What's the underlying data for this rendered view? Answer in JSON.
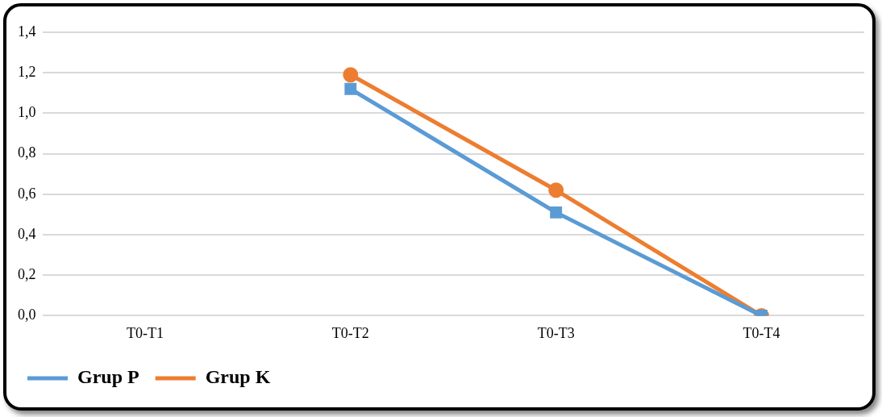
{
  "chart_data": {
    "type": "line",
    "categories": [
      "T0-T1",
      "T0-T2",
      "T0-T3",
      "T0-T4"
    ],
    "series": [
      {
        "name": "Grup P",
        "color": "#5b9bd5",
        "marker": "square",
        "values": [
          null,
          1.12,
          0.51,
          0
        ]
      },
      {
        "name": "Grup K",
        "color": "#ed7d31",
        "marker": "circle",
        "values": [
          null,
          1.19,
          0.62,
          0
        ]
      }
    ],
    "ylim": [
      0,
      1.4
    ],
    "yticks": [
      {
        "value": 0,
        "label": "0,0"
      },
      {
        "value": 0.2,
        "label": "0,2"
      },
      {
        "value": 0.4,
        "label": "0,4"
      },
      {
        "value": 0.6,
        "label": "0,6"
      },
      {
        "value": 0.8,
        "label": "0,8"
      },
      {
        "value": 1,
        "label": "1,0"
      },
      {
        "value": 1.2,
        "label": "1,2"
      },
      {
        "value": 1.4,
        "label": "1,4"
      }
    ],
    "grid": "y",
    "legend": "bottom left",
    "line_style": "solid"
  }
}
